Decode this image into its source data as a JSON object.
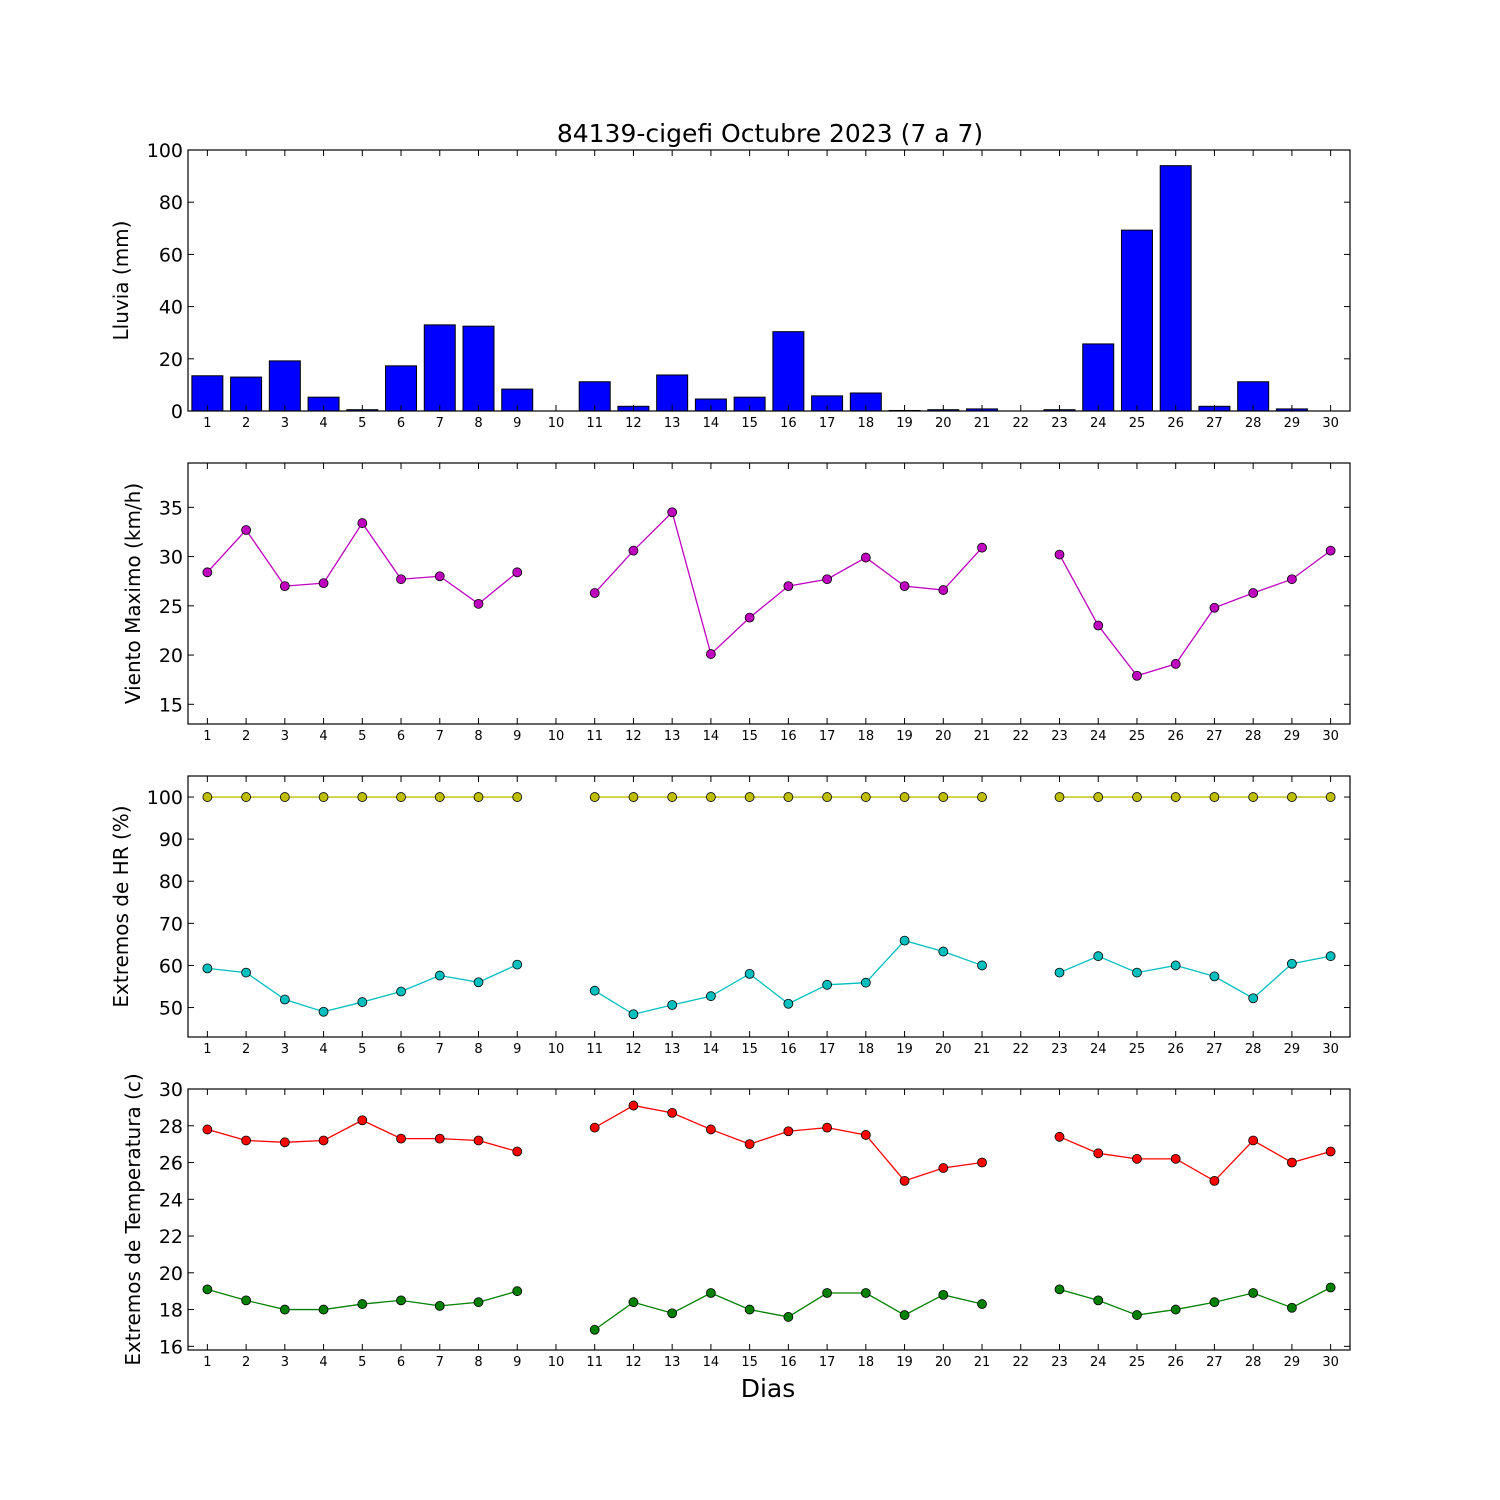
{
  "figure": {
    "title": "84139-cigefi Octubre 2023  (7 a 7)",
    "xlabel": "Dias"
  },
  "chart_data": [
    {
      "type": "bar",
      "ylabel": "Lluvia (mm)",
      "ylim": [
        0,
        100
      ],
      "yticks": [
        0,
        20,
        40,
        60,
        80,
        100
      ],
      "xlim": [
        0.5,
        30.5
      ],
      "categories": [
        1,
        2,
        3,
        4,
        5,
        6,
        7,
        8,
        9,
        10,
        11,
        12,
        13,
        14,
        15,
        16,
        17,
        18,
        19,
        20,
        21,
        22,
        23,
        24,
        25,
        26,
        27,
        28,
        29,
        30
      ],
      "series": [
        {
          "color": "#0000ff",
          "values": [
            13.5,
            13.0,
            19.2,
            5.3,
            0.5,
            17.3,
            33.0,
            32.5,
            8.4,
            0.0,
            11.2,
            1.8,
            13.8,
            4.6,
            5.3,
            30.4,
            5.8,
            6.9,
            0.2,
            0.5,
            0.8,
            0.0,
            0.5,
            25.7,
            69.3,
            94.0,
            1.8,
            11.2,
            0.8,
            0.0
          ]
        }
      ]
    },
    {
      "type": "line",
      "ylabel": "Viento Maximo (km/h)",
      "ylim": [
        13,
        39.5
      ],
      "yticks": [
        15,
        20,
        25,
        30,
        35
      ],
      "xlim": [
        0.5,
        30.5
      ],
      "x": [
        1,
        2,
        3,
        4,
        5,
        6,
        7,
        8,
        9,
        10,
        11,
        12,
        13,
        14,
        15,
        16,
        17,
        18,
        19,
        20,
        21,
        22,
        23,
        24,
        25,
        26,
        27,
        28,
        29,
        30
      ],
      "series": [
        {
          "color": "#bf00bf",
          "values": [
            28.4,
            32.7,
            27.0,
            27.3,
            33.4,
            27.7,
            28.0,
            25.2,
            28.4,
            null,
            26.3,
            30.6,
            34.5,
            20.1,
            23.8,
            27.0,
            27.7,
            29.9,
            27.0,
            26.6,
            30.9,
            null,
            30.2,
            23.0,
            17.9,
            19.1,
            24.8,
            26.3,
            27.7,
            30.6
          ]
        }
      ]
    },
    {
      "type": "line",
      "ylabel": "Extremos de HR (%)",
      "ylim": [
        43,
        105
      ],
      "yticks": [
        50,
        60,
        70,
        80,
        90,
        100
      ],
      "xlim": [
        0.5,
        30.5
      ],
      "x": [
        1,
        2,
        3,
        4,
        5,
        6,
        7,
        8,
        9,
        10,
        11,
        12,
        13,
        14,
        15,
        16,
        17,
        18,
        19,
        20,
        21,
        22,
        23,
        24,
        25,
        26,
        27,
        28,
        29,
        30
      ],
      "series": [
        {
          "color": "#bfbf00",
          "values": [
            100,
            100,
            100,
            100,
            100,
            100,
            100,
            100,
            100,
            null,
            100,
            100,
            100,
            100,
            100,
            100,
            100,
            100,
            100,
            100,
            100,
            null,
            100,
            100,
            100,
            100,
            100,
            100,
            100,
            100
          ]
        },
        {
          "color": "#00bfbf",
          "values": [
            59.3,
            58.3,
            51.9,
            49.0,
            51.3,
            53.8,
            57.6,
            56.0,
            60.2,
            null,
            54.0,
            48.4,
            50.6,
            52.7,
            58.0,
            50.9,
            55.4,
            55.9,
            65.9,
            63.3,
            60.0,
            null,
            58.3,
            62.2,
            58.3,
            60.0,
            57.4,
            52.2,
            60.4,
            62.2
          ]
        }
      ]
    },
    {
      "type": "line",
      "ylabel": "Extremos de Temperatura (c)",
      "ylim": [
        15.8,
        30
      ],
      "yticks": [
        16,
        18,
        20,
        22,
        24,
        26,
        28,
        30
      ],
      "xlim": [
        0.5,
        30.5
      ],
      "x": [
        1,
        2,
        3,
        4,
        5,
        6,
        7,
        8,
        9,
        10,
        11,
        12,
        13,
        14,
        15,
        16,
        17,
        18,
        19,
        20,
        21,
        22,
        23,
        24,
        25,
        26,
        27,
        28,
        29,
        30
      ],
      "series": [
        {
          "color": "#ff0000",
          "values": [
            27.8,
            27.2,
            27.1,
            27.2,
            28.3,
            27.3,
            27.3,
            27.2,
            26.6,
            null,
            27.9,
            29.1,
            28.7,
            27.8,
            27.0,
            27.7,
            27.9,
            27.5,
            25.0,
            25.7,
            26.0,
            null,
            27.4,
            26.5,
            26.2,
            26.2,
            25.0,
            27.2,
            26.0,
            26.6
          ]
        },
        {
          "color": "#008000",
          "values": [
            19.1,
            18.5,
            18.0,
            18.0,
            18.3,
            18.5,
            18.2,
            18.4,
            19.0,
            null,
            16.9,
            18.4,
            17.8,
            18.9,
            18.0,
            17.6,
            18.9,
            18.9,
            17.7,
            18.8,
            18.3,
            null,
            19.1,
            18.5,
            17.7,
            18.0,
            18.4,
            18.9,
            18.1,
            19.2
          ]
        }
      ]
    }
  ]
}
